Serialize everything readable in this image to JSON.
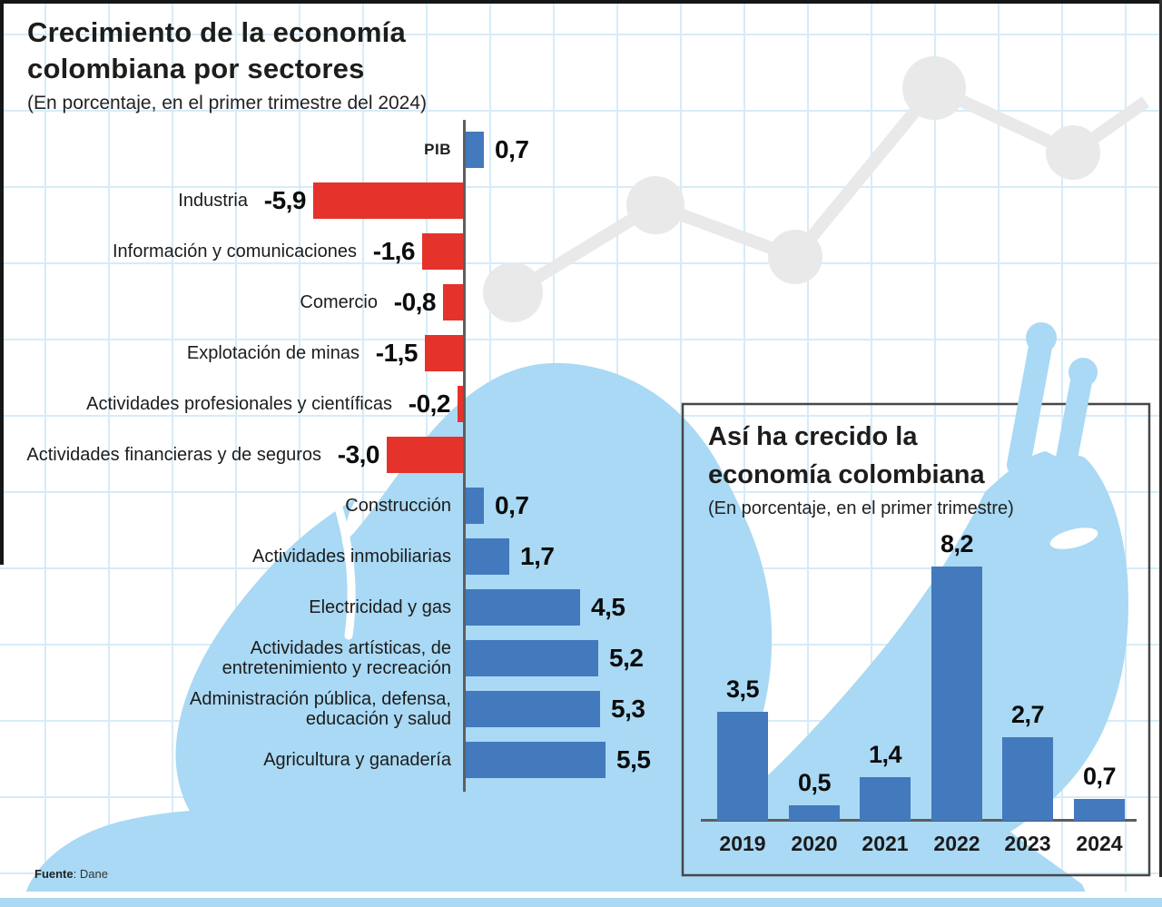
{
  "page": {
    "main_title_lines": [
      "Crecimiento de la economía",
      "colombiana por sectores"
    ],
    "main_subtitle": "(En porcentaje, en el primer trimestre del 2024)",
    "source": {
      "label": "Fuente",
      "value": ": Dane"
    }
  },
  "colors": {
    "positive_bar": "#4379bd",
    "negative_bar": "#e5322b",
    "snail": "#a9d9f4",
    "grid_line": "#d6ebf8",
    "decor_line": "#e9e9e9",
    "axis": "#5f5f5f",
    "bottom_strip": "#a9d9f4"
  },
  "chart_data": [
    {
      "type": "bar",
      "orientation": "horizontal",
      "title": "Crecimiento de la economía colombiana por sectores",
      "subtitle": "(En porcentaje, en el primer trimestre del 2024)",
      "unit": "percent",
      "positive_color": "#4379bd",
      "negative_color": "#e5322b",
      "items": [
        {
          "label": "PIB",
          "value": 0.7,
          "display": "0,7",
          "emphasis_label": true
        },
        {
          "label": "Industria",
          "value": -5.9,
          "display": "-5,9"
        },
        {
          "label": "Información y comunicaciones",
          "value": -1.6,
          "display": "-1,6"
        },
        {
          "label": "Comercio",
          "value": -0.8,
          "display": "-0,8"
        },
        {
          "label": "Explotación de minas",
          "value": -1.5,
          "display": "-1,5"
        },
        {
          "label": "Actividades profesionales y científicas",
          "value": -0.2,
          "display": "-0,2"
        },
        {
          "label": "Actividades financieras y de seguros",
          "value": -3.0,
          "display": "-3,0"
        },
        {
          "label": "Construcción",
          "value": 0.7,
          "display": "0,7"
        },
        {
          "label": "Actividades inmobiliarias",
          "value": 1.7,
          "display": "1,7"
        },
        {
          "label": "Electricidad y gas",
          "value": 4.5,
          "display": "4,5"
        },
        {
          "label": "Actividades artísticas, de\nentretenimiento  y recreación",
          "value": 5.2,
          "display": "5,2"
        },
        {
          "label": "Administración pública, defensa,\neducación y salud",
          "value": 5.3,
          "display": "5,3"
        },
        {
          "label": "Agricultura y ganadería",
          "value": 5.5,
          "display": "5,5"
        }
      ]
    },
    {
      "type": "bar",
      "orientation": "vertical",
      "title": "Así ha crecido la economía colombiana",
      "title_lines": [
        "Así ha crecido la",
        "economía colombiana"
      ],
      "subtitle": "(En porcentaje, en el primer trimestre)",
      "unit": "percent",
      "bar_color": "#4379bd",
      "categories": [
        "2019",
        "2020",
        "2021",
        "2022",
        "2023",
        "2024"
      ],
      "values": [
        3.5,
        0.5,
        1.4,
        8.2,
        2.7,
        0.7
      ],
      "value_labels": [
        "3,5",
        "0,5",
        "1,4",
        "8,2",
        "2,7",
        "0,7"
      ]
    }
  ]
}
